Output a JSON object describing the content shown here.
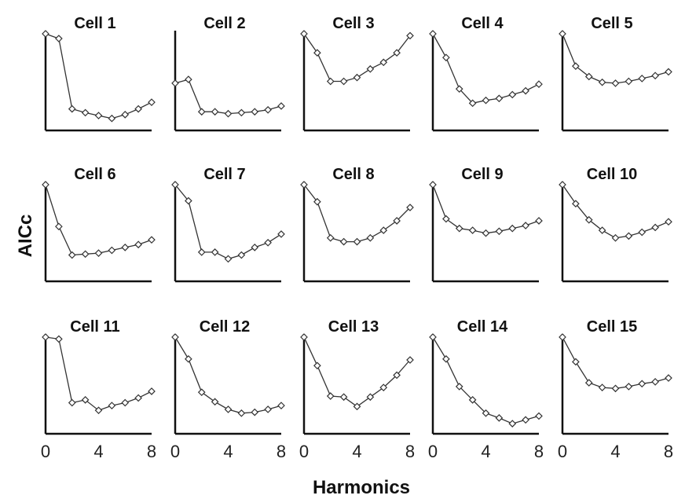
{
  "chart_data": {
    "type": "line",
    "layout": "3x5 small multiples",
    "xlabel": "Harmonics",
    "ylabel": "AICc",
    "x": [
      0,
      1,
      2,
      3,
      4,
      5,
      6,
      7,
      8
    ],
    "xticks": [
      0,
      4,
      8
    ],
    "y_scale": "relative, no tick labels",
    "xlim": [
      0,
      8
    ],
    "ylim": [
      0,
      1
    ],
    "panels": [
      {
        "title": "Cell 1",
        "values": [
          1.0,
          0.95,
          0.21,
          0.17,
          0.14,
          0.11,
          0.15,
          0.21,
          0.28
        ]
      },
      {
        "title": "Cell 2",
        "values": [
          0.48,
          0.52,
          0.18,
          0.18,
          0.16,
          0.17,
          0.18,
          0.2,
          0.24
        ]
      },
      {
        "title": "Cell 3",
        "values": [
          1.0,
          0.8,
          0.5,
          0.5,
          0.54,
          0.63,
          0.7,
          0.8,
          0.98
        ]
      },
      {
        "title": "Cell 4",
        "values": [
          1.0,
          0.75,
          0.42,
          0.27,
          0.3,
          0.32,
          0.36,
          0.4,
          0.47
        ]
      },
      {
        "title": "Cell 5",
        "values": [
          1.0,
          0.66,
          0.55,
          0.49,
          0.48,
          0.5,
          0.53,
          0.56,
          0.6
        ]
      },
      {
        "title": "Cell 6",
        "values": [
          1.0,
          0.56,
          0.26,
          0.27,
          0.28,
          0.31,
          0.34,
          0.37,
          0.42
        ]
      },
      {
        "title": "Cell 7",
        "values": [
          1.0,
          0.83,
          0.29,
          0.29,
          0.22,
          0.26,
          0.34,
          0.39,
          0.48
        ]
      },
      {
        "title": "Cell 8",
        "values": [
          1.0,
          0.82,
          0.44,
          0.4,
          0.4,
          0.44,
          0.52,
          0.62,
          0.76
        ]
      },
      {
        "title": "Cell 9",
        "values": [
          1.0,
          0.64,
          0.54,
          0.52,
          0.49,
          0.51,
          0.54,
          0.57,
          0.62
        ]
      },
      {
        "title": "Cell 10",
        "values": [
          1.0,
          0.8,
          0.63,
          0.52,
          0.44,
          0.46,
          0.5,
          0.55,
          0.61
        ]
      },
      {
        "title": "Cell 11",
        "values": [
          1.0,
          0.98,
          0.31,
          0.34,
          0.23,
          0.28,
          0.31,
          0.36,
          0.43
        ]
      },
      {
        "title": "Cell 12",
        "values": [
          1.0,
          0.77,
          0.42,
          0.32,
          0.24,
          0.2,
          0.21,
          0.24,
          0.28
        ]
      },
      {
        "title": "Cell 13",
        "values": [
          1.0,
          0.7,
          0.38,
          0.37,
          0.27,
          0.37,
          0.47,
          0.6,
          0.76
        ]
      },
      {
        "title": "Cell 14",
        "values": [
          1.0,
          0.77,
          0.48,
          0.34,
          0.2,
          0.15,
          0.09,
          0.13,
          0.17
        ]
      },
      {
        "title": "Cell 15",
        "values": [
          1.0,
          0.74,
          0.52,
          0.47,
          0.46,
          0.48,
          0.51,
          0.53,
          0.57
        ]
      }
    ]
  }
}
